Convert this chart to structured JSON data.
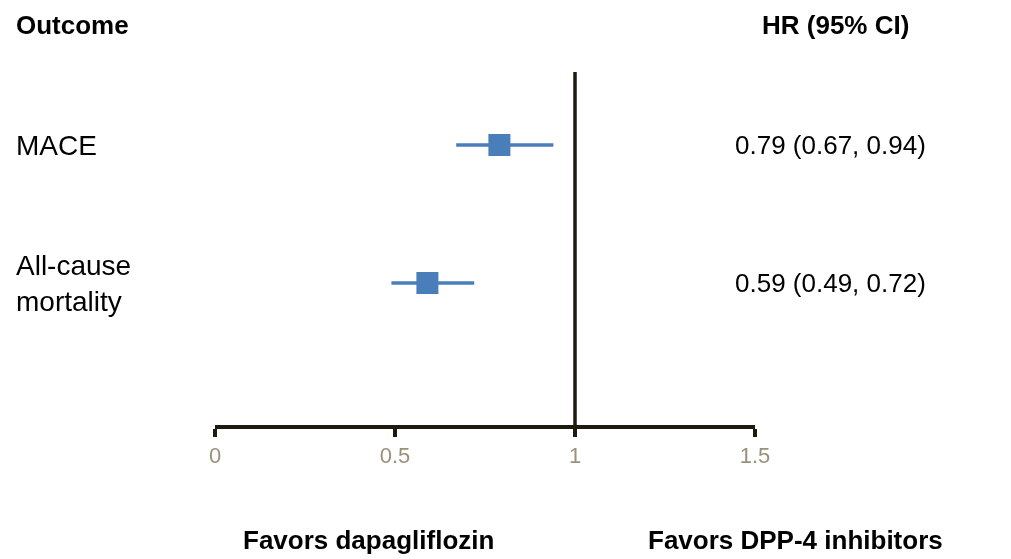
{
  "chart_data": {
    "type": "scatter",
    "orientation": "horizontal",
    "categories": [
      "MACE",
      "All-cause\nmortality"
    ],
    "values": [
      0.79,
      0.59
    ],
    "errors": [
      [
        0.67,
        0.94
      ],
      [
        0.49,
        0.72
      ]
    ],
    "value_labels": [
      "0.79 (0.67, 0.94)",
      "0.59 (0.49, 0.72)"
    ],
    "color": "#4a7ebb",
    "marker": "square",
    "legend": false,
    "tick_labels": "x",
    "xlim": [
      0,
      1.5
    ],
    "xticks": [
      0,
      0.5,
      1,
      1.5
    ],
    "ref_lines": [
      {
        "axis": "x",
        "value": 1,
        "color": "#1f1a10"
      }
    ],
    "annotations": [
      "Outcome",
      "HR (95% CI)",
      "Favors dapagliflozin",
      "Favors DPP-4 inhibitors"
    ]
  }
}
